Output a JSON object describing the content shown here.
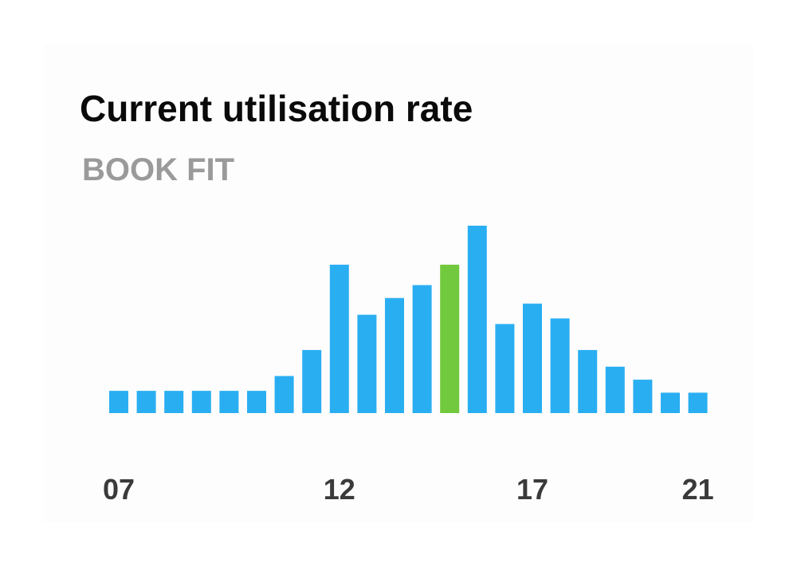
{
  "header": {
    "title": "Current utilisation rate",
    "subtitle": "BOOK FIT"
  },
  "colors": {
    "bar": "#2aaef2",
    "highlight": "#72c93e",
    "tick_label": "#3a3a3a"
  },
  "chart_data": {
    "type": "bar",
    "title": "Current utilisation rate",
    "subtitle": "BOOK FIT",
    "x_tick_labels": [
      "07",
      "12",
      "17",
      "21"
    ],
    "x_tick_positions": [
      0,
      8,
      15,
      21
    ],
    "values": [
      12,
      12,
      12,
      12,
      12,
      12,
      20,
      34,
      80,
      53,
      62,
      69,
      80,
      101,
      48,
      59,
      51,
      34,
      25,
      18,
      11,
      11
    ],
    "highlight_index": 12,
    "ylim": [
      0,
      101
    ],
    "grid": false,
    "legend": "none"
  }
}
